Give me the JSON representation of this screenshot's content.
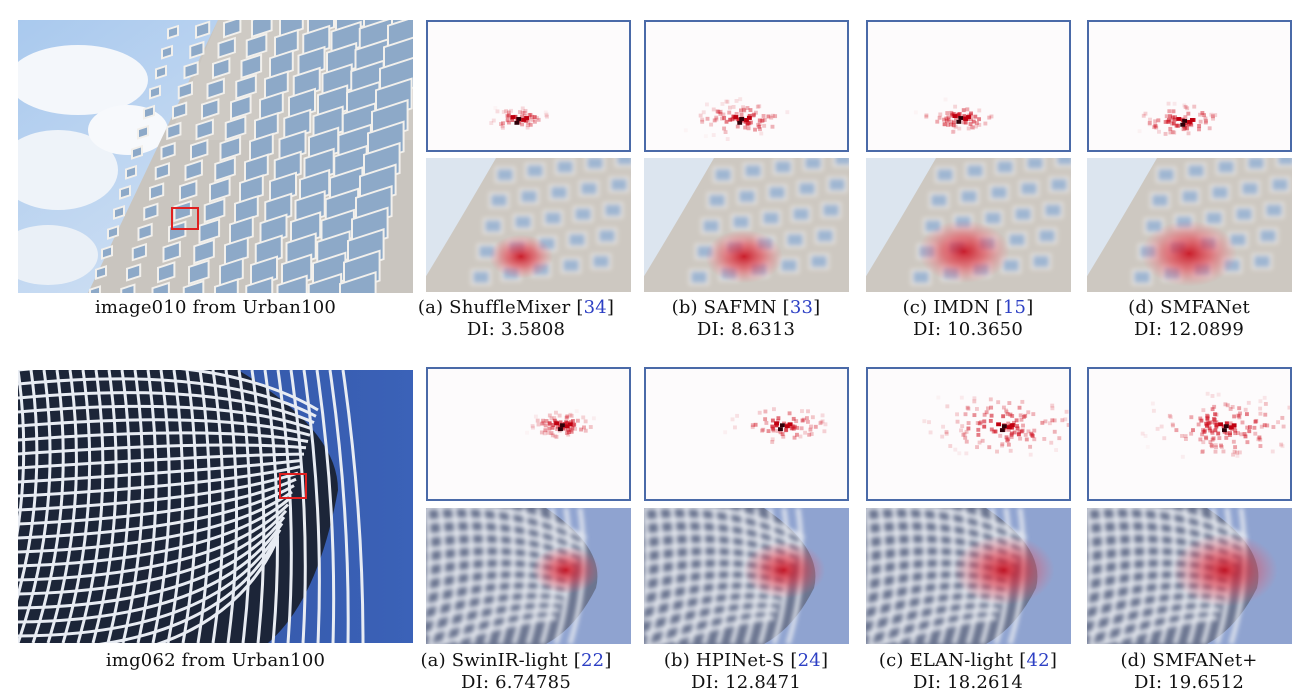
{
  "rows": [
    {
      "source_caption": "image010 from Urban100",
      "theme": "urban-light",
      "methods": [
        {
          "prefix": "(a) ShuffleMixer ",
          "ref": "34",
          "di_label": "DI:",
          "di_value": "3.5808"
        },
        {
          "prefix": "(b) SAFMN ",
          "ref": "33",
          "di_label": "DI:",
          "di_value": "8.6313"
        },
        {
          "prefix": "(c) IMDN ",
          "ref": "15",
          "di_label": "DI:",
          "di_value": "10.3650"
        },
        {
          "prefix": "(d) SMFANet",
          "ref": "",
          "di_label": "DI:",
          "di_value": "12.0899"
        }
      ]
    },
    {
      "source_caption": "img062 from Urban100",
      "theme": "tower-blue",
      "methods": [
        {
          "prefix": "(a) SwinIR-light ",
          "ref": "22",
          "di_label": "DI:",
          "di_value": "6.74785"
        },
        {
          "prefix": "(b) HPINet-S ",
          "ref": "24",
          "di_label": "DI:",
          "di_value": "12.8471"
        },
        {
          "prefix": "(c) ELAN-light ",
          "ref": "42",
          "di_label": "DI:",
          "di_value": "18.2614"
        },
        {
          "prefix": "(d) SMFANet+",
          "ref": "",
          "di_label": "DI:",
          "di_value": "19.6512"
        }
      ]
    }
  ],
  "colors": {
    "heatmap_border": "#4a6aa8",
    "attribution_red": "#d01020",
    "reference_link": "#2c3fc4",
    "roi_box": "#e02020"
  }
}
